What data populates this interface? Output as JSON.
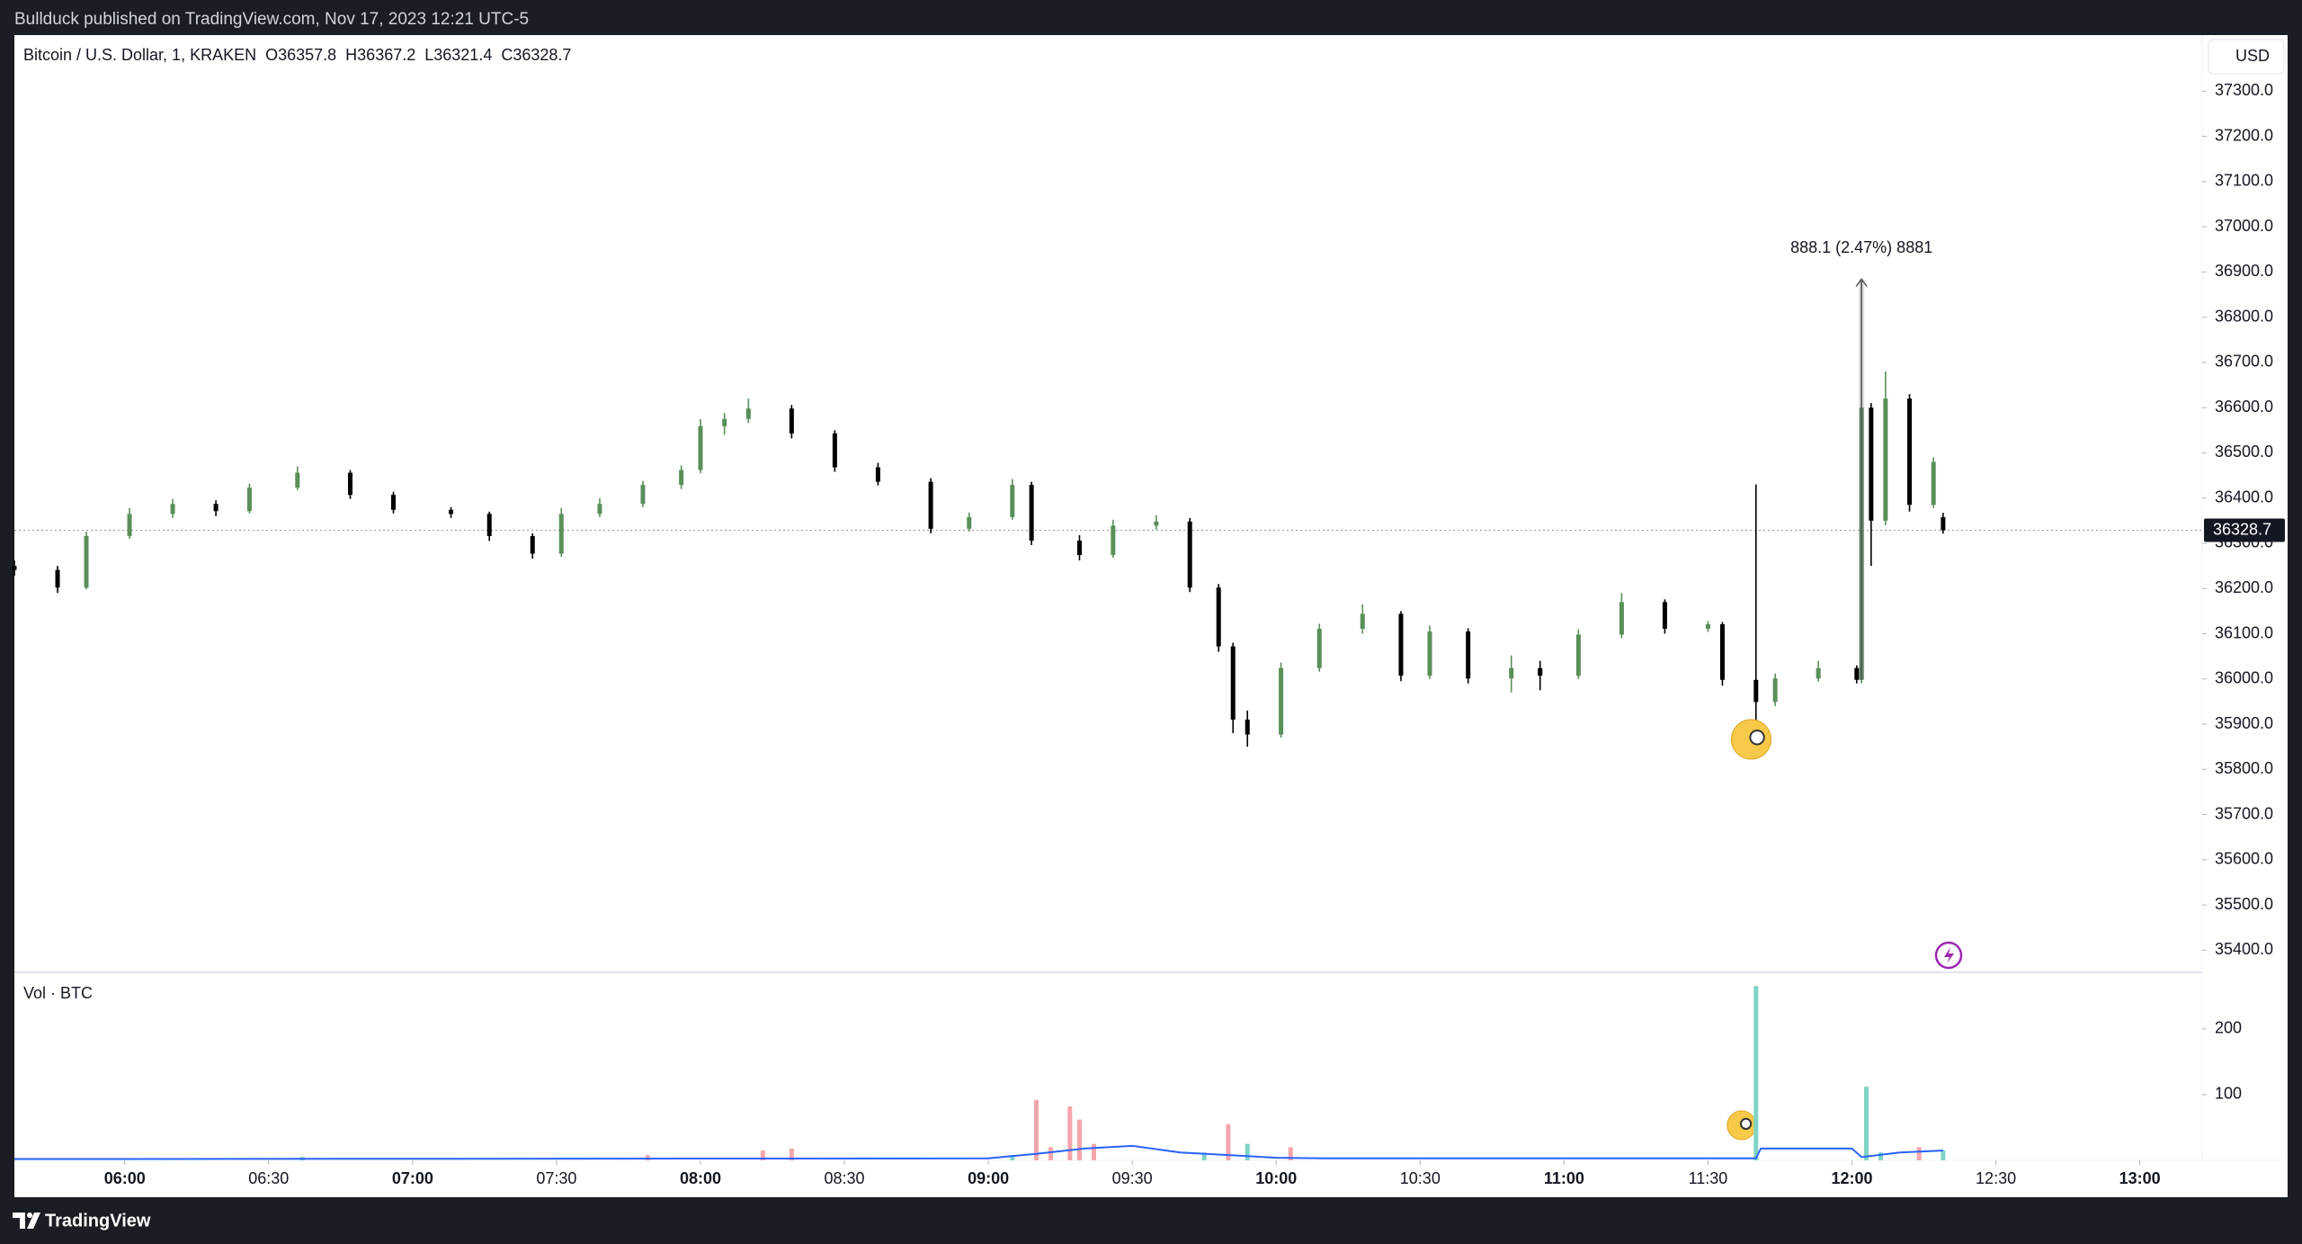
{
  "header": "Bullduck published on TradingView.com, Nov 17, 2023 12:21 UTC-5",
  "footer": "TradingView",
  "chart_data": {
    "type": "candlestick",
    "title": "Bitcoin / U.S. Dollar, 1, KRAKEN",
    "ohlc_legend": [
      "O36357.8",
      "H36367.2",
      "L36321.4",
      "C36328.7"
    ],
    "currency": "USD",
    "up_color": "#5a8f5a",
    "down_color": "#000000",
    "candles": {
      "x": [
        "05:37",
        "05:46",
        "05:52",
        "06:01",
        "06:10",
        "06:19",
        "06:26",
        "06:36",
        "06:47",
        "06:56",
        "07:08",
        "07:16",
        "07:25",
        "07:31",
        "07:39",
        "07:48",
        "07:56",
        "08:00",
        "08:05",
        "08:10",
        "08:19",
        "08:28",
        "08:37",
        "08:48",
        "08:56",
        "09:05",
        "09:09",
        "09:19",
        "09:26",
        "09:35",
        "09:42",
        "09:48",
        "09:51",
        "09:54",
        "10:01",
        "10:09",
        "10:18",
        "10:26",
        "10:32",
        "10:40",
        "10:49",
        "10:55",
        "11:03",
        "11:12",
        "11:21",
        "11:30",
        "11:33",
        "11:40",
        "11:44",
        "11:53",
        "12:01",
        "12:02",
        "12:04",
        "12:07",
        "12:12",
        "12:17",
        "12:19"
      ],
      "open": [
        36250,
        36241,
        36202,
        36316,
        36365,
        36387,
        36371,
        36423,
        36456,
        36407,
        36374,
        36365,
        36316,
        36277,
        36365,
        36387,
        36429,
        36462,
        36559,
        36575,
        36598,
        36543,
        36468,
        36436,
        36332,
        36358,
        36429,
        36306,
        36274,
        36339,
        36348,
        36202,
        36072,
        35910,
        35877,
        36024,
        36111,
        36144,
        36007,
        36105,
        36001,
        36024,
        36007,
        36098,
        36170,
        36111,
        36121,
        35998,
        35949,
        36001,
        36024,
        35998,
        36600,
        36350,
        36620,
        36385,
        36357.8
      ],
      "high": [
        36262,
        36250,
        36326,
        36378,
        36398,
        36395,
        36432,
        36470,
        36462,
        36414,
        36380,
        36370,
        36322,
        36378,
        36400,
        36438,
        36472,
        36575,
        36588,
        36620,
        36606,
        36550,
        36478,
        36444,
        36368,
        36442,
        36436,
        36318,
        36352,
        36362,
        36356,
        36210,
        36080,
        35930,
        36036,
        36122,
        36165,
        36150,
        36118,
        36112,
        36052,
        36040,
        36110,
        36190,
        36176,
        36128,
        36126,
        36430,
        36012,
        36040,
        36030,
        36884,
        36610,
        36680,
        36630,
        36490,
        36367.2
      ],
      "low": [
        36228,
        36190,
        36198,
        36310,
        36356,
        36360,
        36366,
        36418,
        36398,
        36366,
        36356,
        36305,
        36266,
        36270,
        36358,
        36380,
        36420,
        36455,
        36540,
        36566,
        36532,
        36458,
        36428,
        36322,
        36326,
        36352,
        36296,
        36262,
        36268,
        36330,
        36192,
        36060,
        35880,
        35850,
        35870,
        36016,
        36100,
        35995,
        36000,
        35990,
        35970,
        35975,
        36000,
        36090,
        36100,
        36104,
        35985,
        35829,
        35940,
        35994,
        35990,
        35990,
        36250,
        36340,
        36370,
        36378,
        36321.4
      ],
      "close": [
        36241,
        36202,
        36316,
        36365,
        36387,
        36371,
        36423,
        36456,
        36407,
        36374,
        36365,
        36316,
        36277,
        36365,
        36387,
        36429,
        36462,
        36559,
        36575,
        36598,
        36543,
        36468,
        36436,
        36332,
        36358,
        36429,
        36306,
        36274,
        36339,
        36348,
        36202,
        36072,
        35910,
        35877,
        36024,
        36111,
        36144,
        36007,
        36105,
        36001,
        36024,
        36007,
        36098,
        36170,
        36111,
        36121,
        35998,
        35949,
        36001,
        36024,
        35998,
        36600,
        36350,
        36620,
        36385,
        36480,
        36328.7
      ]
    },
    "ylim": [
      35351,
      37420
    ],
    "yticks": [
      {
        "value": 35400,
        "label": "35400.0"
      },
      {
        "value": 35500,
        "label": "35500.0"
      },
      {
        "value": 35600,
        "label": "35600.0"
      },
      {
        "value": 35700,
        "label": "35700.0"
      },
      {
        "value": 35800,
        "label": "35800.0"
      },
      {
        "value": 35900,
        "label": "35900.0"
      },
      {
        "value": 36000,
        "label": "36000.0"
      },
      {
        "value": 36100,
        "label": "36100.0"
      },
      {
        "value": 36200,
        "label": "36200.0"
      },
      {
        "value": 36300,
        "label": "36300.0"
      },
      {
        "value": 36400,
        "label": "36400.0"
      },
      {
        "value": 36500,
        "label": "36500.0"
      },
      {
        "value": 36600,
        "label": "36600.0"
      },
      {
        "value": 36700,
        "label": "36700.0"
      },
      {
        "value": 36800,
        "label": "36800.0"
      },
      {
        "value": 36900,
        "label": "36900.0"
      },
      {
        "value": 37000,
        "label": "37000.0"
      },
      {
        "value": 37100,
        "label": "37100.0"
      },
      {
        "value": 37200,
        "label": "37200.0"
      },
      {
        "value": 37300,
        "label": "37300.0"
      }
    ],
    "xlim": [
      "05:37",
      "13:13"
    ],
    "xticks": [
      "06:00",
      "06:30",
      "07:00",
      "07:30",
      "08:00",
      "08:30",
      "09:00",
      "09:30",
      "10:00",
      "10:30",
      "11:00",
      "11:30",
      "12:00",
      "12:30",
      "13:00"
    ],
    "annotation": "888.1 (2.47%) 8881",
    "volume": {
      "label": "Vol · BTC",
      "x": [
        "06:37",
        "07:49",
        "08:13",
        "08:19",
        "09:05",
        "09:10",
        "09:13",
        "09:17",
        "09:19",
        "09:22",
        "09:45",
        "09:50",
        "09:54",
        "10:03",
        "11:40",
        "12:03",
        "12:06",
        "12:14",
        "12:19"
      ],
      "values": [
        5,
        8,
        15,
        18,
        8,
        92,
        20,
        82,
        62,
        25,
        12,
        55,
        25,
        20,
        265,
        112,
        12,
        20,
        15
      ],
      "colors": [
        "#7fd3c6",
        "#f5a5aa",
        "#f5a5aa",
        "#f5a5aa",
        "#7fd3c6",
        "#f5a5aa",
        "#f5a5aa",
        "#f5a5aa",
        "#f5a5aa",
        "#f5a5aa",
        "#7fd3c6",
        "#f5a5aa",
        "#7fd3c6",
        "#f5a5aa",
        "#7fd3c6",
        "#7fd3c6",
        "#7fd3c6",
        "#f5a5aa",
        "#7fd3c6"
      ],
      "ylim": [
        0,
        286
      ],
      "yticks": [
        100,
        200
      ],
      "ma": {
        "color": "#2962ff",
        "x": [
          "05:37",
          "09:00",
          "09:10",
          "09:20",
          "09:30",
          "09:40",
          "09:50",
          "10:00",
          "10:10",
          "11:30",
          "11:40",
          "11:41",
          "12:00",
          "12:02",
          "12:10",
          "12:19"
        ],
        "values": [
          2,
          3,
          10,
          18,
          22,
          12,
          8,
          4,
          3,
          3,
          3,
          18,
          18,
          5,
          12,
          15
        ]
      }
    }
  }
}
